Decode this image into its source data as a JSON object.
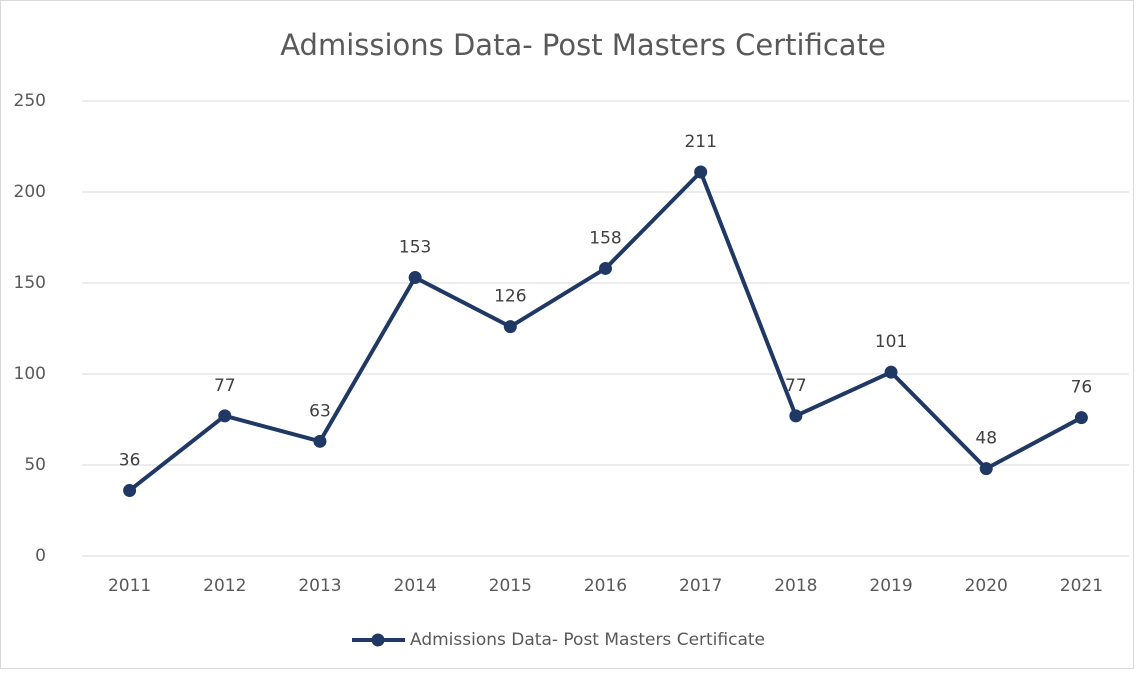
{
  "chart_data": {
    "type": "line",
    "title": "Admissions Data- Post Masters Certificate",
    "categories": [
      "2011",
      "2012",
      "2013",
      "2014",
      "2015",
      "2016",
      "2017",
      "2018",
      "2019",
      "2020",
      "2021"
    ],
    "series": [
      {
        "name": "Admissions Data- Post Masters Certificate",
        "color": "#203864",
        "values": [
          36,
          77,
          63,
          153,
          126,
          158,
          211,
          77,
          101,
          48,
          76
        ]
      }
    ],
    "ylim": [
      0,
      250
    ],
    "yticks": [
      0,
      50,
      100,
      150,
      200,
      250
    ],
    "grid": true,
    "legend": "bottom"
  }
}
